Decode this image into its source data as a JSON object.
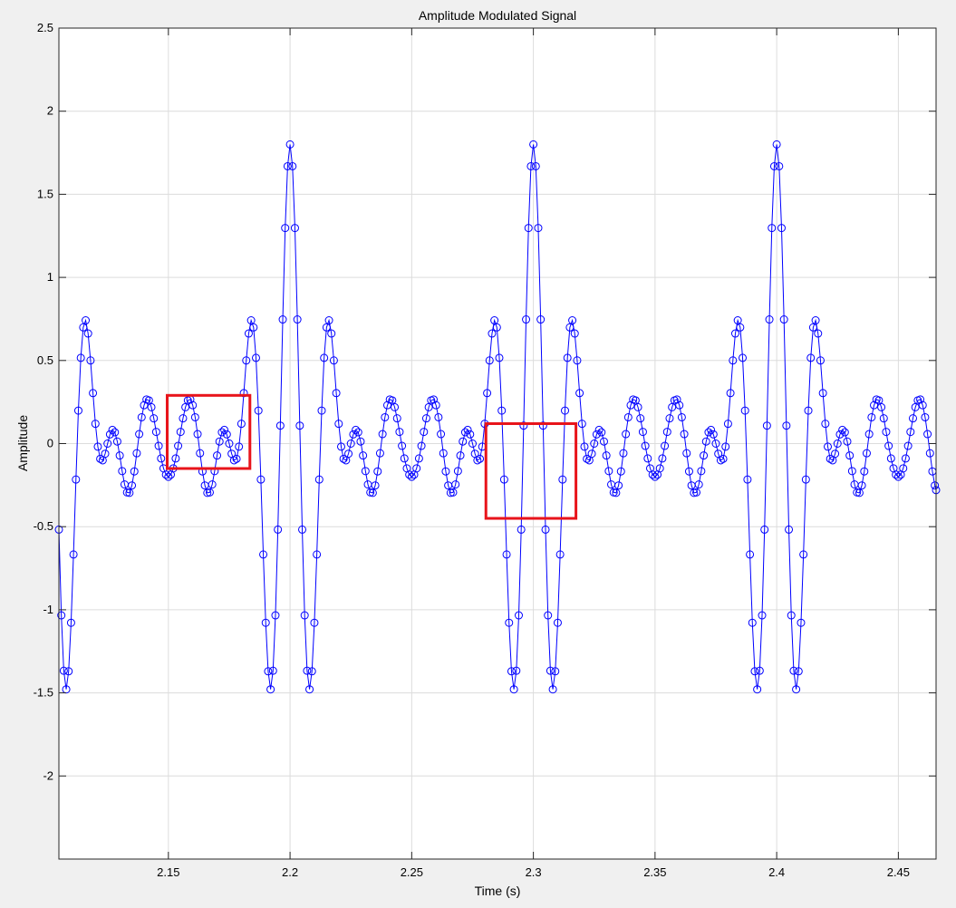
{
  "chart_data": {
    "type": "line",
    "title": "Amplitude Modulated Signal",
    "xlabel": "Time (s)",
    "ylabel": "Amplitude",
    "xlim": [
      2.105,
      2.4655
    ],
    "ylim": [
      -2.5,
      2.5
    ],
    "x_ticks": [
      "2.15",
      "2.2",
      "2.25",
      "2.3",
      "2.35",
      "2.4",
      "2.45"
    ],
    "y_ticks": [
      "-2",
      "-1.5",
      "-1",
      "-0.5",
      "0",
      "0.5",
      "1",
      "1.5",
      "2",
      "2.5"
    ],
    "grid": true,
    "legend": "none",
    "series": [
      {
        "signal": "AM: (1 + 0.8*cos(2*pi*10*t))*cos(2*pi*10*t)*cos(2*pi*60*t) approx., sampled every 0.001 s",
        "marker": "circle",
        "color": "#0000ff",
        "sample_rate_hz": 1000,
        "x_start": 2.105,
        "x_end": 2.4655
      }
    ],
    "annotations": [
      {
        "type": "rectangle",
        "color": "#e8141b",
        "x_range": [
          2.1495,
          2.1835
        ],
        "y_range": [
          -0.15,
          0.29
        ]
      },
      {
        "type": "rectangle",
        "color": "#e8141b",
        "x_range": [
          2.2805,
          2.3175
        ],
        "y_range": [
          -0.45,
          0.12
        ]
      }
    ]
  }
}
